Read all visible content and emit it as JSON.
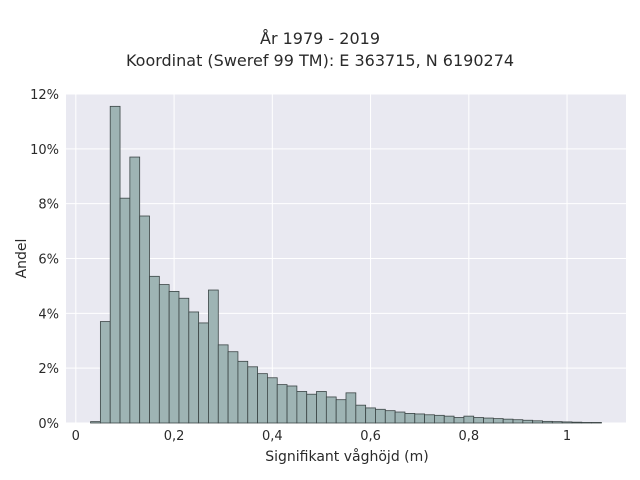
{
  "chart_data": {
    "type": "bar",
    "title": "År 1979 - 2019",
    "subtitle": "Koordinat (Sweref 99 TM): E 363715, N 6190274",
    "xlabel": "Signifikant våghöjd (m)",
    "ylabel": "Andel",
    "xlim": [
      -0.02,
      1.12
    ],
    "ylim": [
      0,
      12
    ],
    "x_ticks": [
      0,
      0.2,
      0.4,
      0.6,
      0.8,
      1
    ],
    "x_tick_labels": [
      "0",
      "0,2",
      "0,4",
      "0,6",
      "0,8",
      "1"
    ],
    "y_ticks": [
      0,
      2,
      4,
      6,
      8,
      10,
      12
    ],
    "y_tick_labels": [
      "0%",
      "2%",
      "4%",
      "6%",
      "8%",
      "10%",
      "12%"
    ],
    "bin_width": 0.02,
    "bin_starts": [
      0.03,
      0.05,
      0.07,
      0.09,
      0.11,
      0.13,
      0.15,
      0.17,
      0.19,
      0.21,
      0.23,
      0.25,
      0.27,
      0.29,
      0.31,
      0.33,
      0.35,
      0.37,
      0.39,
      0.41,
      0.43,
      0.45,
      0.47,
      0.49,
      0.51,
      0.53,
      0.55,
      0.57,
      0.59,
      0.61,
      0.63,
      0.65,
      0.67,
      0.69,
      0.71,
      0.73,
      0.75,
      0.77,
      0.79,
      0.81,
      0.83,
      0.85,
      0.87,
      0.89,
      0.91,
      0.93,
      0.95,
      0.97,
      0.99,
      1.01,
      1.03,
      1.05
    ],
    "values": [
      0.05,
      3.7,
      11.55,
      8.2,
      9.7,
      7.55,
      5.35,
      5.05,
      4.8,
      4.55,
      4.05,
      3.65,
      4.85,
      2.85,
      2.6,
      2.25,
      2.05,
      1.8,
      1.65,
      1.4,
      1.35,
      1.15,
      1.05,
      1.15,
      0.95,
      0.85,
      1.1,
      0.65,
      0.55,
      0.5,
      0.45,
      0.4,
      0.35,
      0.33,
      0.3,
      0.28,
      0.25,
      0.2,
      0.25,
      0.2,
      0.18,
      0.16,
      0.14,
      0.12,
      0.1,
      0.08,
      0.06,
      0.05,
      0.04,
      0.03,
      0.02,
      0.02
    ],
    "colors": {
      "bar_fill": "#9eb4b4",
      "bar_edge": "#3b4545",
      "plot_bg": "#e9e9f1",
      "grid": "#ffffff"
    },
    "grid": true
  }
}
